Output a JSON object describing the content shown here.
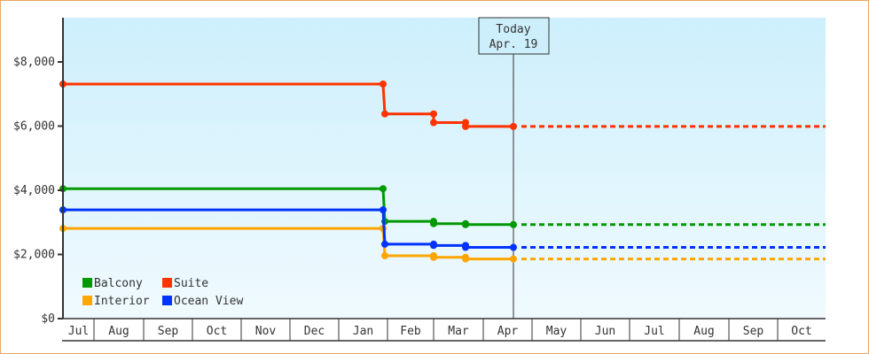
{
  "chart_data": {
    "type": "line",
    "title": "",
    "xlabel": "",
    "ylabel": "",
    "ylim": [
      0,
      9300
    ],
    "yticks": [
      {
        "value": 0,
        "label": "$0"
      },
      {
        "value": 2000,
        "label": "$2,000"
      },
      {
        "value": 4000,
        "label": "$4,000"
      },
      {
        "value": 6000,
        "label": "$6,000"
      },
      {
        "value": 8000,
        "label": "$8,000"
      }
    ],
    "x_months": [
      "Jul",
      "Aug",
      "Sep",
      "Oct",
      "Nov",
      "Dec",
      "Jan",
      "Feb",
      "Mar",
      "Apr",
      "May",
      "Jun",
      "Jul",
      "Aug",
      "Sep",
      "Oct"
    ],
    "grid": false,
    "legend_position": "lower-left inside",
    "today_marker": {
      "line1": "Today",
      "line2": "Apr. 19"
    },
    "series": [
      {
        "name": "Balcony",
        "color": "#009900",
        "points": [
          {
            "date": "Jul",
            "value": 4050
          },
          {
            "date": "Jan (late)",
            "value": 4050
          },
          {
            "date": "Jan (late)",
            "value": 3030
          },
          {
            "date": "Feb",
            "value": 3030
          },
          {
            "date": "Feb",
            "value": 2960
          },
          {
            "date": "Mar",
            "value": 2960
          },
          {
            "date": "Mar",
            "value": 2930
          },
          {
            "date": "Apr. 19",
            "value": 2930
          }
        ],
        "projection": {
          "from": "Apr. 19",
          "to": "Oct",
          "value": 2930,
          "style": "dashed"
        }
      },
      {
        "name": "Suite",
        "color": "#ff3300",
        "points": [
          {
            "date": "Jul",
            "value": 7310
          },
          {
            "date": "Jan (late)",
            "value": 7310
          },
          {
            "date": "Jan (late)",
            "value": 6380
          },
          {
            "date": "Feb",
            "value": 6380
          },
          {
            "date": "Feb",
            "value": 6110
          },
          {
            "date": "Mar",
            "value": 6110
          },
          {
            "date": "Mar",
            "value": 5990
          },
          {
            "date": "Apr. 19",
            "value": 5990
          }
        ],
        "projection": {
          "from": "Apr. 19",
          "to": "Oct",
          "value": 5990,
          "style": "dashed"
        }
      },
      {
        "name": "Interior",
        "color": "#ffa500",
        "points": [
          {
            "date": "Jul",
            "value": 2810
          },
          {
            "date": "Jan (late)",
            "value": 2810
          },
          {
            "date": "Jan (late)",
            "value": 1960
          },
          {
            "date": "Feb",
            "value": 1960
          },
          {
            "date": "Feb",
            "value": 1910
          },
          {
            "date": "Mar",
            "value": 1910
          },
          {
            "date": "Mar",
            "value": 1860
          },
          {
            "date": "Apr. 19",
            "value": 1860
          }
        ],
        "projection": {
          "from": "Apr. 19",
          "to": "Oct",
          "value": 1860,
          "style": "dashed"
        }
      },
      {
        "name": "Ocean View",
        "color": "#0033ff",
        "points": [
          {
            "date": "Jul",
            "value": 3390
          },
          {
            "date": "Jan (late)",
            "value": 3390
          },
          {
            "date": "Jan (late)",
            "value": 2320
          },
          {
            "date": "Feb",
            "value": 2320
          },
          {
            "date": "Feb",
            "value": 2280
          },
          {
            "date": "Mar",
            "value": 2280
          },
          {
            "date": "Mar",
            "value": 2220
          },
          {
            "date": "Apr. 19",
            "value": 2220
          }
        ],
        "projection": {
          "from": "Apr. 19",
          "to": "Oct",
          "value": 2220,
          "style": "dashed"
        }
      }
    ]
  },
  "legend": [
    {
      "label": "Balcony",
      "color": "#009900"
    },
    {
      "label": "Suite",
      "color": "#ff3300"
    },
    {
      "label": "Interior",
      "color": "#ffa500"
    },
    {
      "label": "Ocean View",
      "color": "#0033ff"
    }
  ],
  "colors": {
    "frame_border": "#e8a865",
    "plot_bg_top": "#cdeffc",
    "plot_bg_bottom": "#f0fafe",
    "axis": "#333333"
  }
}
